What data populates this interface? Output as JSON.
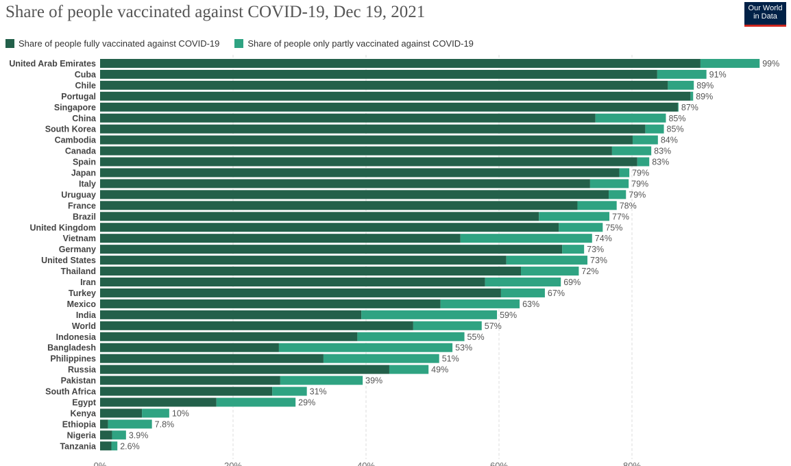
{
  "header": {
    "title": "Share of people vaccinated against COVID-19, Dec 19, 2021",
    "logo_line1": "Our World",
    "logo_line2": "in Data"
  },
  "legend": {
    "full_label": "Share of people fully vaccinated against COVID-19",
    "partial_label": "Share of people only partly vaccinated against COVID-19"
  },
  "colors": {
    "full": "#23604a",
    "partial": "#2fa382",
    "grid": "#dddddd",
    "label": "#444444",
    "value": "#555555"
  },
  "chart_data": {
    "type": "bar",
    "orientation": "horizontal",
    "stacked": true,
    "title": "Share of people vaccinated against COVID-19, Dec 19, 2021",
    "xlim": [
      0,
      100
    ],
    "x_ticks": [
      "0%",
      "20%",
      "40%",
      "60%",
      "80%"
    ],
    "categories": [
      "United Arab Emirates",
      "Cuba",
      "Chile",
      "Portugal",
      "Singapore",
      "China",
      "South Korea",
      "Cambodia",
      "Canada",
      "Spain",
      "Japan",
      "Italy",
      "Uruguay",
      "France",
      "Brazil",
      "United Kingdom",
      "Vietnam",
      "Germany",
      "United States",
      "Thailand",
      "Iran",
      "Turkey",
      "Mexico",
      "India",
      "World",
      "Indonesia",
      "Bangladesh",
      "Philippines",
      "Russia",
      "Pakistan",
      "South Africa",
      "Egypt",
      "Kenya",
      "Ethiopia",
      "Nigeria",
      "Tanzania"
    ],
    "series": [
      {
        "name": "Share of people fully vaccinated against COVID-19",
        "values": [
          90.3,
          83.8,
          85.4,
          88.8,
          86.9,
          74.5,
          82.0,
          80.1,
          77.0,
          80.8,
          78.1,
          73.7,
          76.5,
          71.8,
          66.0,
          69.0,
          54.2,
          69.5,
          61.1,
          63.3,
          57.9,
          60.3,
          51.2,
          39.3,
          47.1,
          38.7,
          26.9,
          33.6,
          43.5,
          27.1,
          25.9,
          17.5,
          6.3,
          1.2,
          1.8,
          1.7
        ],
        "color": "#23604a"
      },
      {
        "name": "Share of people only partly vaccinated against COVID-19",
        "values": [
          8.9,
          7.4,
          3.9,
          0.4,
          0.1,
          10.6,
          2.8,
          3.8,
          5.9,
          1.8,
          1.5,
          5.8,
          2.6,
          5.9,
          10.6,
          6.6,
          19.8,
          3.3,
          12.2,
          8.7,
          11.4,
          6.6,
          11.9,
          20.4,
          10.3,
          16.1,
          26.1,
          17.4,
          5.9,
          12.4,
          5.2,
          11.9,
          4.1,
          6.6,
          2.1,
          0.9
        ],
        "color": "#2fa382"
      }
    ],
    "totals": [
      "99%",
      "91%",
      "89%",
      "89%",
      "87%",
      "85%",
      "85%",
      "84%",
      "83%",
      "83%",
      "79%",
      "79%",
      "79%",
      "78%",
      "77%",
      "75%",
      "74%",
      "73%",
      "73%",
      "72%",
      "69%",
      "67%",
      "63%",
      "59%",
      "57%",
      "55%",
      "53%",
      "51%",
      "49%",
      "39%",
      "31%",
      "29%",
      "10%",
      "7.8%",
      "3.9%",
      "2.6%"
    ]
  }
}
